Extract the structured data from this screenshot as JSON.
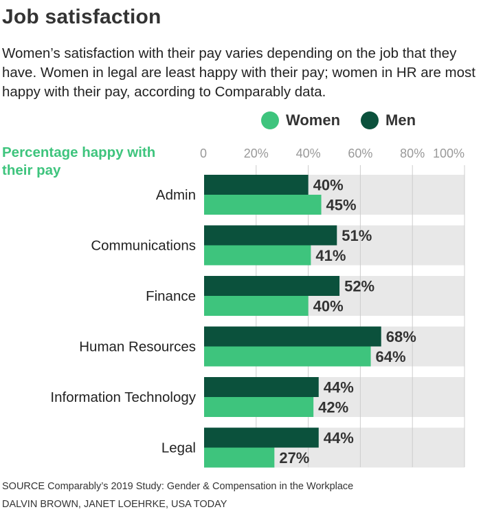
{
  "title": "Job satisfaction",
  "subtitle": "Women’s satisfaction with their pay varies depending on the job that they have. Women in legal are least happy with their pay; women in HR are most happy with their pay, according to Comparably data.",
  "colors": {
    "women": "#3ec47d",
    "men": "#0b513c",
    "track": "#e8e8e8",
    "grid": "#cccccc",
    "ylabel": "#3ec47d"
  },
  "legend": {
    "women": "Women",
    "men": "Men"
  },
  "footer": {
    "source": "SOURCE Comparably’s 2019 Study: Gender & Compensation in the Workplace",
    "credit": "DALVIN BROWN, JANET LOEHRKE, USA TODAY"
  },
  "chart_data": {
    "type": "bar",
    "orientation": "horizontal",
    "ylabel": "Percentage happy with their pay",
    "xlim": [
      0,
      100
    ],
    "ticks": [
      "0",
      "20%",
      "40%",
      "60%",
      "80%",
      "100%"
    ],
    "tick_values": [
      0,
      20,
      40,
      60,
      80,
      100
    ],
    "categories": [
      "Admin",
      "Communications",
      "Finance",
      "Human Resources",
      "Information Technology",
      "Legal"
    ],
    "series": [
      {
        "name": "Men",
        "values": [
          40,
          51,
          52,
          68,
          44,
          44
        ],
        "labels": [
          "40%",
          "51%",
          "52%",
          "68%",
          "44%",
          "44%"
        ]
      },
      {
        "name": "Women",
        "values": [
          45,
          41,
          40,
          64,
          42,
          27
        ],
        "labels": [
          "45%",
          "41%",
          "40%",
          "64%",
          "42%",
          "27%"
        ]
      }
    ],
    "grid": true,
    "legend_position": "top-right"
  }
}
